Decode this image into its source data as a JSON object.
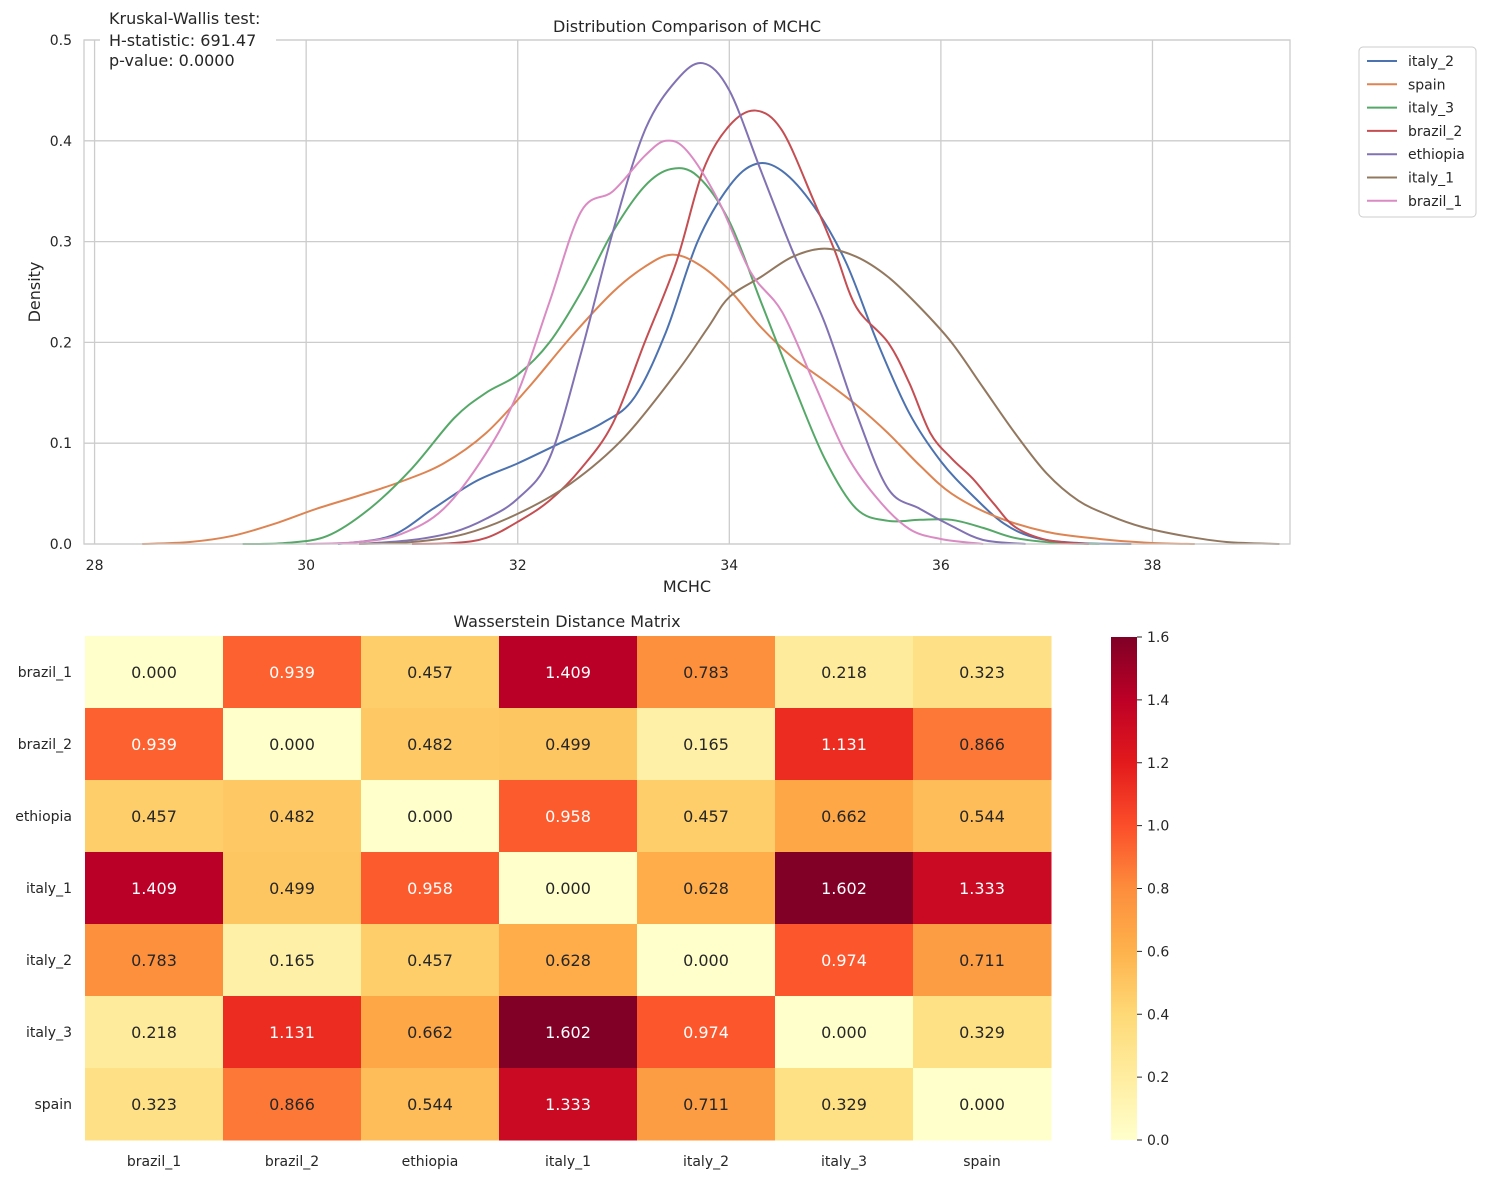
{
  "chart_data": [
    {
      "type": "line",
      "title": "Distribution Comparison of MCHC",
      "xlabel": "MCHC",
      "ylabel": "Density",
      "xlim": [
        27.9,
        39.3
      ],
      "ylim": [
        0,
        0.5
      ],
      "xticks": [
        "28",
        "30",
        "32",
        "34",
        "36",
        "38"
      ],
      "yticks": [
        "0.0",
        "0.1",
        "0.2",
        "0.3",
        "0.4",
        "0.5"
      ],
      "grid": true,
      "legend_position": "outside-top-right",
      "annotation": [
        "Kruskal-Wallis test:",
        "H-statistic: 691.47",
        "p-value: 0.0000"
      ],
      "series": [
        {
          "name": "italy_2",
          "color": "#4c72b0",
          "points": [
            [
              30.3,
              0
            ],
            [
              30.8,
              0.008
            ],
            [
              31.2,
              0.035
            ],
            [
              31.6,
              0.062
            ],
            [
              32.0,
              0.08
            ],
            [
              32.4,
              0.1
            ],
            [
              32.8,
              0.12
            ],
            [
              33.1,
              0.145
            ],
            [
              33.4,
              0.21
            ],
            [
              33.7,
              0.3
            ],
            [
              34.0,
              0.355
            ],
            [
              34.25,
              0.377
            ],
            [
              34.5,
              0.37
            ],
            [
              34.8,
              0.335
            ],
            [
              35.1,
              0.28
            ],
            [
              35.4,
              0.2
            ],
            [
              35.7,
              0.13
            ],
            [
              36.0,
              0.082
            ],
            [
              36.3,
              0.048
            ],
            [
              36.6,
              0.02
            ],
            [
              36.9,
              0.006
            ],
            [
              37.3,
              0.001
            ],
            [
              37.8,
              0
            ]
          ]
        },
        {
          "name": "spain",
          "color": "#dd8452",
          "points": [
            [
              28.45,
              0
            ],
            [
              28.9,
              0.002
            ],
            [
              29.3,
              0.008
            ],
            [
              29.7,
              0.02
            ],
            [
              30.1,
              0.035
            ],
            [
              30.5,
              0.048
            ],
            [
              30.9,
              0.062
            ],
            [
              31.3,
              0.08
            ],
            [
              31.7,
              0.11
            ],
            [
              32.1,
              0.155
            ],
            [
              32.5,
              0.205
            ],
            [
              32.9,
              0.25
            ],
            [
              33.2,
              0.275
            ],
            [
              33.45,
              0.287
            ],
            [
              33.7,
              0.278
            ],
            [
              34.0,
              0.252
            ],
            [
              34.3,
              0.215
            ],
            [
              34.6,
              0.185
            ],
            [
              34.9,
              0.162
            ],
            [
              35.2,
              0.138
            ],
            [
              35.5,
              0.11
            ],
            [
              35.8,
              0.078
            ],
            [
              36.1,
              0.05
            ],
            [
              36.5,
              0.028
            ],
            [
              37.0,
              0.012
            ],
            [
              37.5,
              0.005
            ],
            [
              38.0,
              0.001
            ],
            [
              38.4,
              0
            ]
          ]
        },
        {
          "name": "italy_3",
          "color": "#55a868",
          "points": [
            [
              29.4,
              0
            ],
            [
              29.8,
              0.001
            ],
            [
              30.2,
              0.008
            ],
            [
              30.6,
              0.035
            ],
            [
              31.0,
              0.075
            ],
            [
              31.4,
              0.125
            ],
            [
              31.7,
              0.15
            ],
            [
              32.0,
              0.168
            ],
            [
              32.3,
              0.2
            ],
            [
              32.6,
              0.25
            ],
            [
              32.9,
              0.31
            ],
            [
              33.2,
              0.355
            ],
            [
              33.45,
              0.372
            ],
            [
              33.7,
              0.365
            ],
            [
              34.0,
              0.32
            ],
            [
              34.3,
              0.24
            ],
            [
              34.6,
              0.16
            ],
            [
              34.9,
              0.085
            ],
            [
              35.2,
              0.035
            ],
            [
              35.5,
              0.023
            ],
            [
              35.8,
              0.024
            ],
            [
              36.1,
              0.024
            ],
            [
              36.4,
              0.016
            ],
            [
              36.7,
              0.006
            ],
            [
              37.1,
              0.001
            ],
            [
              37.5,
              0
            ]
          ]
        },
        {
          "name": "brazil_2",
          "color": "#c44e52",
          "points": [
            [
              31.0,
              0
            ],
            [
              31.4,
              0.001
            ],
            [
              31.7,
              0.006
            ],
            [
              32.0,
              0.022
            ],
            [
              32.3,
              0.043
            ],
            [
              32.6,
              0.075
            ],
            [
              32.9,
              0.12
            ],
            [
              33.2,
              0.2
            ],
            [
              33.5,
              0.28
            ],
            [
              33.75,
              0.37
            ],
            [
              34.0,
              0.415
            ],
            [
              34.25,
              0.43
            ],
            [
              34.5,
              0.41
            ],
            [
              34.8,
              0.34
            ],
            [
              35.0,
              0.29
            ],
            [
              35.2,
              0.235
            ],
            [
              35.5,
              0.2
            ],
            [
              35.7,
              0.16
            ],
            [
              35.9,
              0.11
            ],
            [
              36.1,
              0.085
            ],
            [
              36.3,
              0.065
            ],
            [
              36.5,
              0.04
            ],
            [
              36.7,
              0.017
            ],
            [
              37.0,
              0.004
            ],
            [
              37.4,
              0
            ]
          ]
        },
        {
          "name": "ethiopia",
          "color": "#8172b3",
          "points": [
            [
              30.5,
              0
            ],
            [
              31.0,
              0.004
            ],
            [
              31.4,
              0.012
            ],
            [
              31.7,
              0.025
            ],
            [
              32.0,
              0.045
            ],
            [
              32.3,
              0.085
            ],
            [
              32.6,
              0.19
            ],
            [
              32.9,
              0.31
            ],
            [
              33.2,
              0.41
            ],
            [
              33.5,
              0.46
            ],
            [
              33.75,
              0.477
            ],
            [
              34.0,
              0.45
            ],
            [
              34.3,
              0.37
            ],
            [
              34.6,
              0.29
            ],
            [
              34.9,
              0.22
            ],
            [
              35.2,
              0.13
            ],
            [
              35.5,
              0.055
            ],
            [
              35.8,
              0.035
            ],
            [
              36.1,
              0.018
            ],
            [
              36.4,
              0.004
            ],
            [
              36.8,
              0
            ]
          ]
        },
        {
          "name": "italy_1",
          "color": "#937860",
          "points": [
            [
              30.5,
              0
            ],
            [
              31.0,
              0.002
            ],
            [
              31.5,
              0.01
            ],
            [
              32.0,
              0.03
            ],
            [
              32.5,
              0.06
            ],
            [
              33.0,
              0.105
            ],
            [
              33.5,
              0.17
            ],
            [
              33.8,
              0.215
            ],
            [
              34.0,
              0.245
            ],
            [
              34.3,
              0.265
            ],
            [
              34.6,
              0.285
            ],
            [
              34.9,
              0.293
            ],
            [
              35.2,
              0.285
            ],
            [
              35.5,
              0.265
            ],
            [
              35.8,
              0.235
            ],
            [
              36.1,
              0.2
            ],
            [
              36.4,
              0.155
            ],
            [
              36.7,
              0.11
            ],
            [
              37.0,
              0.07
            ],
            [
              37.3,
              0.043
            ],
            [
              37.6,
              0.028
            ],
            [
              37.9,
              0.017
            ],
            [
              38.3,
              0.008
            ],
            [
              38.7,
              0.002
            ],
            [
              39.2,
              0
            ]
          ]
        },
        {
          "name": "brazil_1",
          "color": "#da8bc3",
          "points": [
            [
              30.0,
              0
            ],
            [
              30.5,
              0.002
            ],
            [
              30.9,
              0.01
            ],
            [
              31.3,
              0.035
            ],
            [
              31.7,
              0.09
            ],
            [
              32.0,
              0.15
            ],
            [
              32.3,
              0.24
            ],
            [
              32.6,
              0.33
            ],
            [
              32.9,
              0.35
            ],
            [
              33.2,
              0.385
            ],
            [
              33.4,
              0.4
            ],
            [
              33.6,
              0.39
            ],
            [
              33.9,
              0.34
            ],
            [
              34.2,
              0.27
            ],
            [
              34.5,
              0.23
            ],
            [
              34.8,
              0.16
            ],
            [
              35.1,
              0.09
            ],
            [
              35.4,
              0.045
            ],
            [
              35.7,
              0.015
            ],
            [
              36.0,
              0.005
            ],
            [
              36.4,
              0
            ]
          ]
        }
      ]
    },
    {
      "type": "heatmap",
      "title": "Wasserstein Distance Matrix",
      "rows": [
        "brazil_1",
        "brazil_2",
        "ethiopia",
        "italy_1",
        "italy_2",
        "italy_3",
        "spain"
      ],
      "cols": [
        "brazil_1",
        "brazil_2",
        "ethiopia",
        "italy_1",
        "italy_2",
        "italy_3",
        "spain"
      ],
      "values": [
        [
          0.0,
          0.939,
          0.457,
          1.409,
          0.783,
          0.218,
          0.323
        ],
        [
          0.939,
          0.0,
          0.482,
          0.499,
          0.165,
          1.131,
          0.866
        ],
        [
          0.457,
          0.482,
          0.0,
          0.958,
          0.457,
          0.662,
          0.544
        ],
        [
          1.409,
          0.499,
          0.958,
          0.0,
          0.628,
          1.602,
          1.333
        ],
        [
          0.783,
          0.165,
          0.457,
          0.628,
          0.0,
          0.974,
          0.711
        ],
        [
          0.218,
          1.131,
          0.662,
          1.602,
          0.974,
          0.0,
          0.329
        ],
        [
          0.323,
          0.866,
          0.544,
          1.333,
          0.711,
          0.329,
          0.0
        ]
      ],
      "vmin": 0,
      "vmax": 1.6,
      "colormap": "YlOrRd",
      "colorbar_ticks": [
        "0.0",
        "0.2",
        "0.4",
        "0.6",
        "0.8",
        "1.0",
        "1.2",
        "1.4",
        "1.6"
      ]
    }
  ]
}
